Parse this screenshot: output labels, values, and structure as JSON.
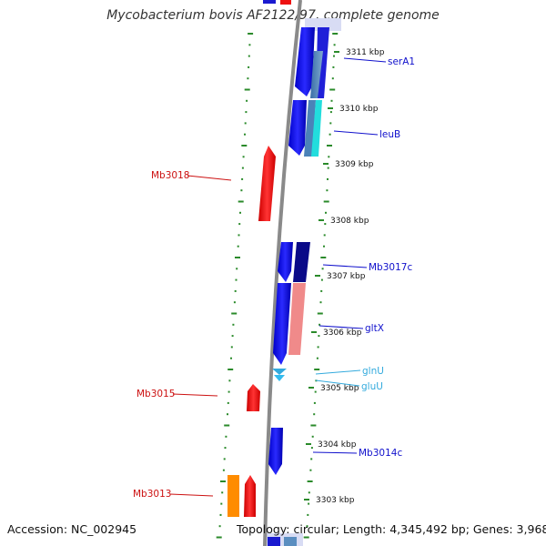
{
  "title": "Mycobacterium bovis AF2122/97, complete genome",
  "footer": {
    "accession": "Accession: NC_002945",
    "topology": "Topology: circular; Length: 4,345,492 bp; Genes: 3,968"
  },
  "colors": {
    "forward_cds": "#1010e0",
    "reverse_cds": "#ee1111",
    "orange_cds": "#ff8c00",
    "navy_cds": "#0a0a88",
    "pink_cds": "#f08080",
    "cyan_cds": "#22dddd",
    "trna": "#33aadd",
    "backbone": "#888888",
    "ticks": "#2a8a2a"
  },
  "kbp_ticks": [
    "3311 kbp",
    "3310 kbp",
    "3309 kbp",
    "3308 kbp",
    "3307 kbp",
    "3306 kbp",
    "3305 kbp",
    "3304 kbp",
    "3303 kbp"
  ],
  "gene_labels": {
    "serA1": "serA1",
    "leuB": "leuB",
    "Mb3018": "Mb3018",
    "Mb3017c": "Mb3017c",
    "gltX": "gltX",
    "glnU": "glnU",
    "gluU": "gluU",
    "Mb3015": "Mb3015",
    "Mb3014c": "Mb3014c",
    "Mb3013": "Mb3013"
  }
}
